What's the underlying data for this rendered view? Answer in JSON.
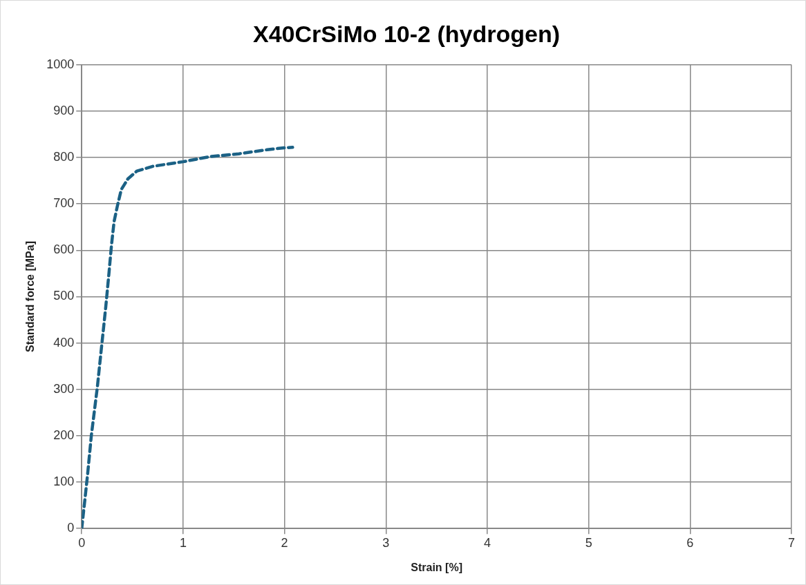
{
  "chart_data": {
    "type": "line",
    "title": "X40CrSiMo 10-2 (hydrogen)",
    "xlabel": "Strain [%]",
    "ylabel": "Standard force [MPa]",
    "xlim": [
      0,
      7
    ],
    "xticks": [
      0,
      1,
      2,
      3,
      4,
      5,
      6,
      7
    ],
    "ylim": [
      0,
      1000
    ],
    "yticks": [
      0,
      100,
      200,
      300,
      400,
      500,
      600,
      700,
      800,
      900,
      1000
    ],
    "grid": true,
    "legend": false,
    "marker": "none",
    "line_style": "dashed",
    "series": [
      {
        "color": "#1b6185",
        "x": [
          0,
          0.026,
          0.057,
          0.095,
          0.154,
          0.198,
          0.237,
          0.267,
          0.293,
          0.319,
          0.352,
          0.39,
          0.455,
          0.545,
          0.7,
          1.0,
          1.265,
          1.55,
          1.83,
          2.0,
          2.08
        ],
        "values": [
          0,
          52,
          115,
          201,
          305,
          397,
          478,
          547,
          610,
          662,
          696,
          731,
          754,
          771,
          781,
          791,
          802,
          808,
          817,
          821,
          822
        ]
      }
    ]
  }
}
